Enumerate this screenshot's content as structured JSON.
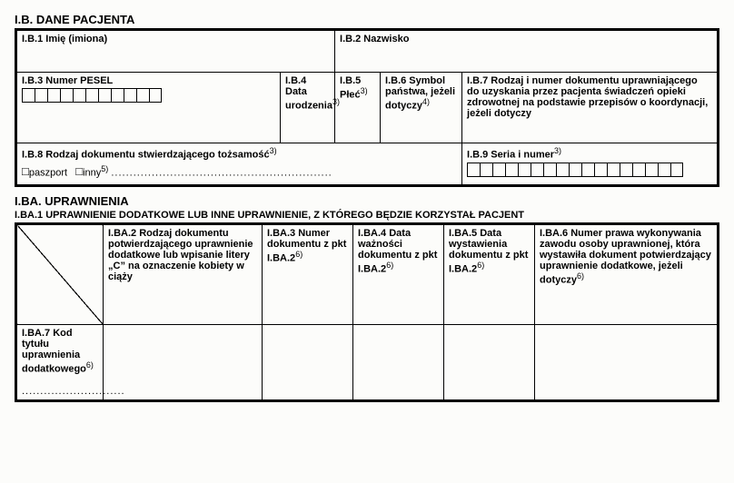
{
  "sectionB": {
    "title": "I.B. DANE PACJENTA",
    "b1": "I.B.1 Imię (imiona)",
    "b2": "I.B.2 Nazwisko",
    "b3": "I.B.3 Numer PESEL",
    "b4": "I.B.4 Data urodzenia",
    "b4sup": "3)",
    "b5": "I.B.5 Płeć",
    "b5sup": "3)",
    "b6": "I.B.6 Symbol państwa, jeżeli dotyczy",
    "b6sup": "4)",
    "b7": "I.B.7 Rodzaj i numer dokumentu uprawniającego do uzyskania przez pacjenta świadczeń opieki zdrowotnej na podstawie przepisów o koordynacji, jeżeli dotyczy",
    "b8": "I.B.8 Rodzaj dokumentu stwierdzającego tożsamość",
    "b8sup": "3)",
    "b8_passport": "paszport",
    "b8_other": "inny",
    "b8_othersup": "5)",
    "b8_dots": "............................................................",
    "b9": "I.B.9 Seria i numer",
    "b9sup": "3)"
  },
  "sectionBA": {
    "title": "I.BA. UPRAWNIENIA",
    "sub": "I.BA.1 UPRAWNIENIE DODATKOWE LUB INNE UPRAWNIENIE, Z KTÓREGO BĘDZIE KORZYSTAŁ PACJENT",
    "ba2": "I.BA.2 Rodzaj dokumentu potwierdzającego uprawnienie dodatkowe lub wpisanie litery „C” na oznaczenie kobiety w ciąży",
    "ba3": "I.BA.3 Numer dokumentu z pkt I.BA.2",
    "ba3sup": "6)",
    "ba4": "I.BA.4 Data ważności dokumentu z pkt I.BA.2",
    "ba4sup": "6)",
    "ba5": "I.BA.5 Data wystawienia dokumentu z pkt I.BA.2",
    "ba5sup": "6)",
    "ba6": "I.BA.6 Numer prawa wykonywania zawodu osoby uprawnionej, która wystawiła dokument potwierdzający uprawnienie dodatkowe, jeżeli dotyczy",
    "ba6sup": "6)",
    "ba7": "I.BA.7 Kod tytułu uprawnienia dodatkowego",
    "ba7sup": "6)",
    "ba7_dots": "............................"
  },
  "layout": {
    "pesel_cells": 11,
    "serial_cells": 17,
    "colors": {
      "border": "#000000",
      "bg": "#fcfcfa",
      "text": "#000000"
    }
  }
}
